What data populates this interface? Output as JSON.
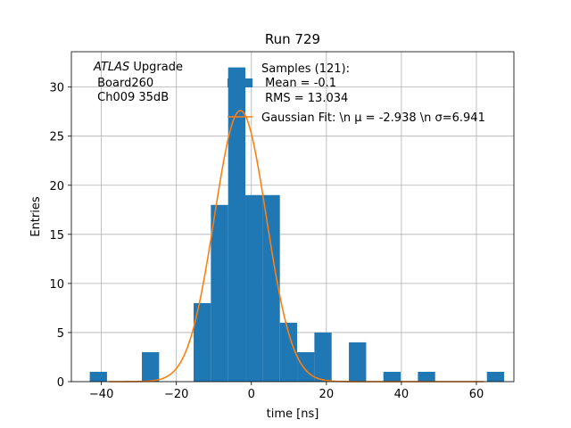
{
  "chart_data": {
    "type": "bar",
    "title": "Run 729",
    "xlabel": "time [ns]",
    "ylabel": "Entries",
    "xlim": [
      -48,
      70
    ],
    "ylim": [
      0,
      33.6
    ],
    "grid": true,
    "xticks": [
      -40,
      -20,
      0,
      20,
      40,
      60
    ],
    "xtick_labels": [
      "−40",
      "−20",
      "0",
      "20",
      "40",
      "60"
    ],
    "yticks": [
      0,
      5,
      10,
      15,
      20,
      25,
      30
    ],
    "ytick_labels": [
      "0",
      "5",
      "10",
      "15",
      "20",
      "25",
      "30"
    ],
    "histogram": {
      "color": "#1f77b4",
      "bin_edges": [
        -43.1,
        -38.5,
        -33.8,
        -29.2,
        -24.6,
        -20.0,
        -15.4,
        -10.8,
        -6.2,
        -1.6,
        3.0,
        7.6,
        12.2,
        16.8,
        21.4,
        26.0,
        30.6,
        35.2,
        39.8,
        44.4,
        49.0,
        53.6,
        58.2,
        62.8,
        67.4
      ],
      "bin_edges_note": "",
      "counts": [
        1,
        0,
        0,
        3,
        0,
        0,
        8,
        18,
        32,
        19,
        19,
        6,
        3,
        5,
        0,
        4,
        0,
        1,
        0,
        1,
        0,
        0,
        0,
        1
      ]
    },
    "gaussian_fit": {
      "color": "#ff7f0e",
      "mu": -2.938,
      "sigma": 6.941,
      "amplitude": 27.6,
      "x_range": [
        -38,
        62
      ]
    },
    "legend": {
      "placement": "top-right",
      "samples_line1": "Samples (121):",
      "samples_line2": " Mean = -0.1",
      "samples_line3": " RMS = 13.034",
      "fit_label": "Gaussian Fit: \\n μ = -2.938 \\n σ=6.941"
    },
    "annotation": {
      "italic": "ATLAS",
      "line1_rest": " Upgrade",
      "line2": " Board260",
      "line3": " Ch009 35dB"
    }
  }
}
